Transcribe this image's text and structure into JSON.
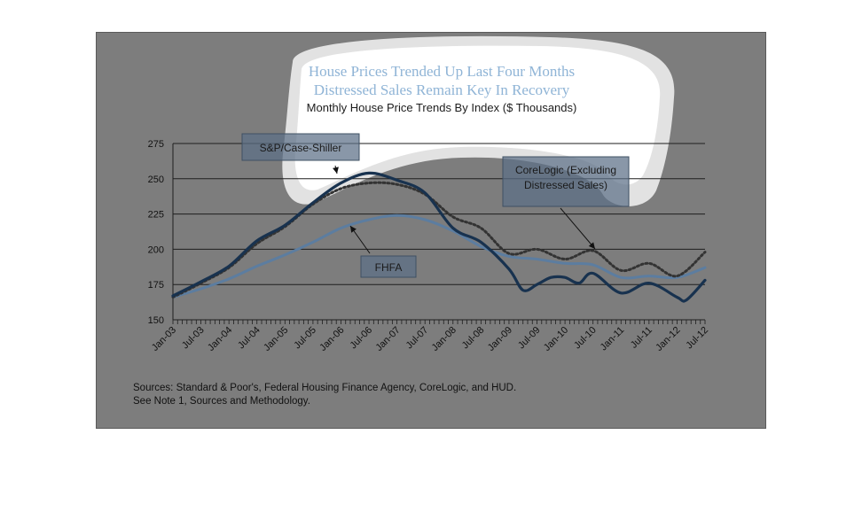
{
  "chart_data": {
    "type": "line",
    "title_lines": [
      "House Prices Trended Up Last Four Months",
      "Distressed Sales Remain Key In Recovery"
    ],
    "subtitle": "Monthly House Price Trends By Index ($ Thousands)",
    "x_tick_labels": [
      "Jan-03",
      "Jul-03",
      "Jan-04",
      "Jul-04",
      "Jan-05",
      "Jul-05",
      "Jan-06",
      "Jul-06",
      "Jan-07",
      "Jul-07",
      "Jan-08",
      "Jul-08",
      "Jan-09",
      "Jul-09",
      "Jan-10",
      "Jul-10",
      "Jan-11",
      "Jul-11",
      "Jan-12",
      "Jul-12"
    ],
    "y_ticks": [
      150,
      175,
      200,
      225,
      250,
      275
    ],
    "ylim": [
      150,
      275
    ],
    "grid": true,
    "callouts": [
      {
        "label": "S&P/Case-Shiller",
        "series": "sp"
      },
      {
        "label": "CoreLogic (Excluding",
        "label2": "Distressed Sales)",
        "series": "cl"
      },
      {
        "label": "FHFA",
        "series": "fhfa"
      }
    ],
    "series": [
      {
        "key": "sp",
        "name": "S&P/Case-Shiller",
        "color": "#18324f",
        "style": "solid-thick",
        "points": [
          [
            "Jan-03",
            167
          ],
          [
            "Jul-03",
            177
          ],
          [
            "Jan-04",
            188
          ],
          [
            "Jul-04",
            206
          ],
          [
            "Jan-05",
            217
          ],
          [
            "Jul-05",
            233
          ],
          [
            "Jan-06",
            247
          ],
          [
            "Jul-06",
            254
          ],
          [
            "Jan-07",
            249
          ],
          [
            "Jul-07",
            240
          ],
          [
            "Jan-08",
            215
          ],
          [
            "Jul-08",
            205
          ],
          [
            "Jan-09",
            186
          ],
          [
            "Apr-09",
            171
          ],
          [
            "Jul-09",
            175
          ],
          [
            "Oct-09",
            180
          ],
          [
            "Jan-10",
            180
          ],
          [
            "Apr-10",
            176
          ],
          [
            "Jul-10",
            183
          ],
          [
            "Jan-11",
            169
          ],
          [
            "Jul-11",
            176
          ],
          [
            "Jan-12",
            166
          ],
          [
            "Mar-12",
            164
          ],
          [
            "Jul-12",
            178
          ]
        ]
      },
      {
        "key": "cl",
        "name": "CoreLogic (Excluding Distressed Sales)",
        "color": "#333333",
        "style": "dotted",
        "points": [
          [
            "Jan-03",
            166
          ],
          [
            "Jul-03",
            176
          ],
          [
            "Jan-04",
            187
          ],
          [
            "Jul-04",
            204
          ],
          [
            "Jan-05",
            216
          ],
          [
            "Jul-05",
            232
          ],
          [
            "Jan-06",
            243
          ],
          [
            "Jul-06",
            247
          ],
          [
            "Jan-07",
            246
          ],
          [
            "Jul-07",
            239
          ],
          [
            "Jan-08",
            223
          ],
          [
            "Jul-08",
            215
          ],
          [
            "Jan-09",
            197
          ],
          [
            "Jul-09",
            200
          ],
          [
            "Jan-10",
            193
          ],
          [
            "Jul-10",
            199
          ],
          [
            "Jan-11",
            185
          ],
          [
            "Jul-11",
            190
          ],
          [
            "Jan-12",
            181
          ],
          [
            "Jul-12",
            198
          ]
        ]
      },
      {
        "key": "fhfa",
        "name": "FHFA",
        "color": "#5c7da0",
        "style": "solid",
        "points": [
          [
            "Jan-03",
            166
          ],
          [
            "Jul-03",
            172
          ],
          [
            "Jan-04",
            179
          ],
          [
            "Jul-04",
            188
          ],
          [
            "Jan-05",
            196
          ],
          [
            "Jul-05",
            205
          ],
          [
            "Jan-06",
            215
          ],
          [
            "Jul-06",
            221
          ],
          [
            "Jan-07",
            224
          ],
          [
            "Jul-07",
            221
          ],
          [
            "Jan-08",
            213
          ],
          [
            "Jul-08",
            202
          ],
          [
            "Jan-09",
            195
          ],
          [
            "Jul-09",
            193
          ],
          [
            "Jan-10",
            190
          ],
          [
            "Jul-10",
            189
          ],
          [
            "Jan-11",
            180
          ],
          [
            "Jul-11",
            181
          ],
          [
            "Jan-12",
            180
          ],
          [
            "Jul-12",
            187
          ]
        ]
      }
    ],
    "sources": [
      "Sources:  Standard & Poor's, Federal Housing Finance Agency, CoreLogic, and HUD.",
      "See Note 1, Sources and Methodology."
    ]
  }
}
